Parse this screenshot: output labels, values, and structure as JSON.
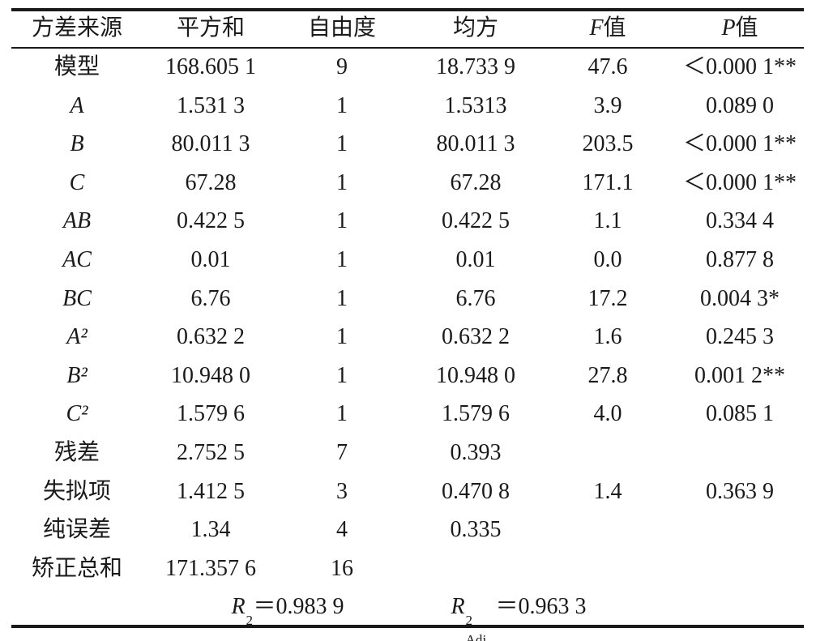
{
  "table": {
    "header": [
      "方差来源",
      "平方和",
      "自由度",
      "均方",
      {
        "italic": "F",
        "text": "值"
      },
      {
        "italic": "P",
        "text": "值"
      }
    ],
    "rows": [
      [
        "模型",
        "168.605 1",
        "9",
        "18.733 9",
        "47.6",
        "＜0.000 1**"
      ],
      [
        "A",
        "1.531 3",
        "1",
        "1.5313",
        "3.9",
        "0.089 0"
      ],
      [
        "B",
        "80.011 3",
        "1",
        "80.011 3",
        "203.5",
        "＜0.000 1**"
      ],
      [
        "C",
        "67.28",
        "1",
        "67.28",
        "171.1",
        "＜0.000 1**"
      ],
      [
        "AB",
        "0.422 5",
        "1",
        "0.422 5",
        "1.1",
        "0.334 4"
      ],
      [
        "AC",
        "0.01",
        "1",
        "0.01",
        "0.0",
        "0.877 8"
      ],
      [
        "BC",
        "6.76",
        "1",
        "6.76",
        "17.2",
        "0.004 3*"
      ],
      [
        "A²",
        "0.632 2",
        "1",
        "0.632 2",
        "1.6",
        "0.245 3"
      ],
      [
        "B²",
        "10.948 0",
        "1",
        "10.948 0",
        "27.8",
        "0.001 2**"
      ],
      [
        "C²",
        "1.579 6",
        "1",
        "1.579 6",
        "4.0",
        "0.085 1"
      ],
      [
        "残差",
        "2.752 5",
        "7",
        "0.393"
      ],
      [
        "失拟项",
        "1.412 5",
        "3",
        "0.470 8",
        "1.4",
        "0.363 9"
      ],
      [
        "纯误差",
        "1.34",
        "4",
        "0.335"
      ],
      [
        "矫正总和",
        "171.357 6",
        "16"
      ]
    ],
    "footer": [
      {
        "symbol": "R",
        "sup": "2",
        "text": "＝0.983 9"
      },
      {
        "symbol": "R",
        "sup": "2",
        "sub": "Adj",
        "text": "＝0.963 3"
      }
    ]
  }
}
